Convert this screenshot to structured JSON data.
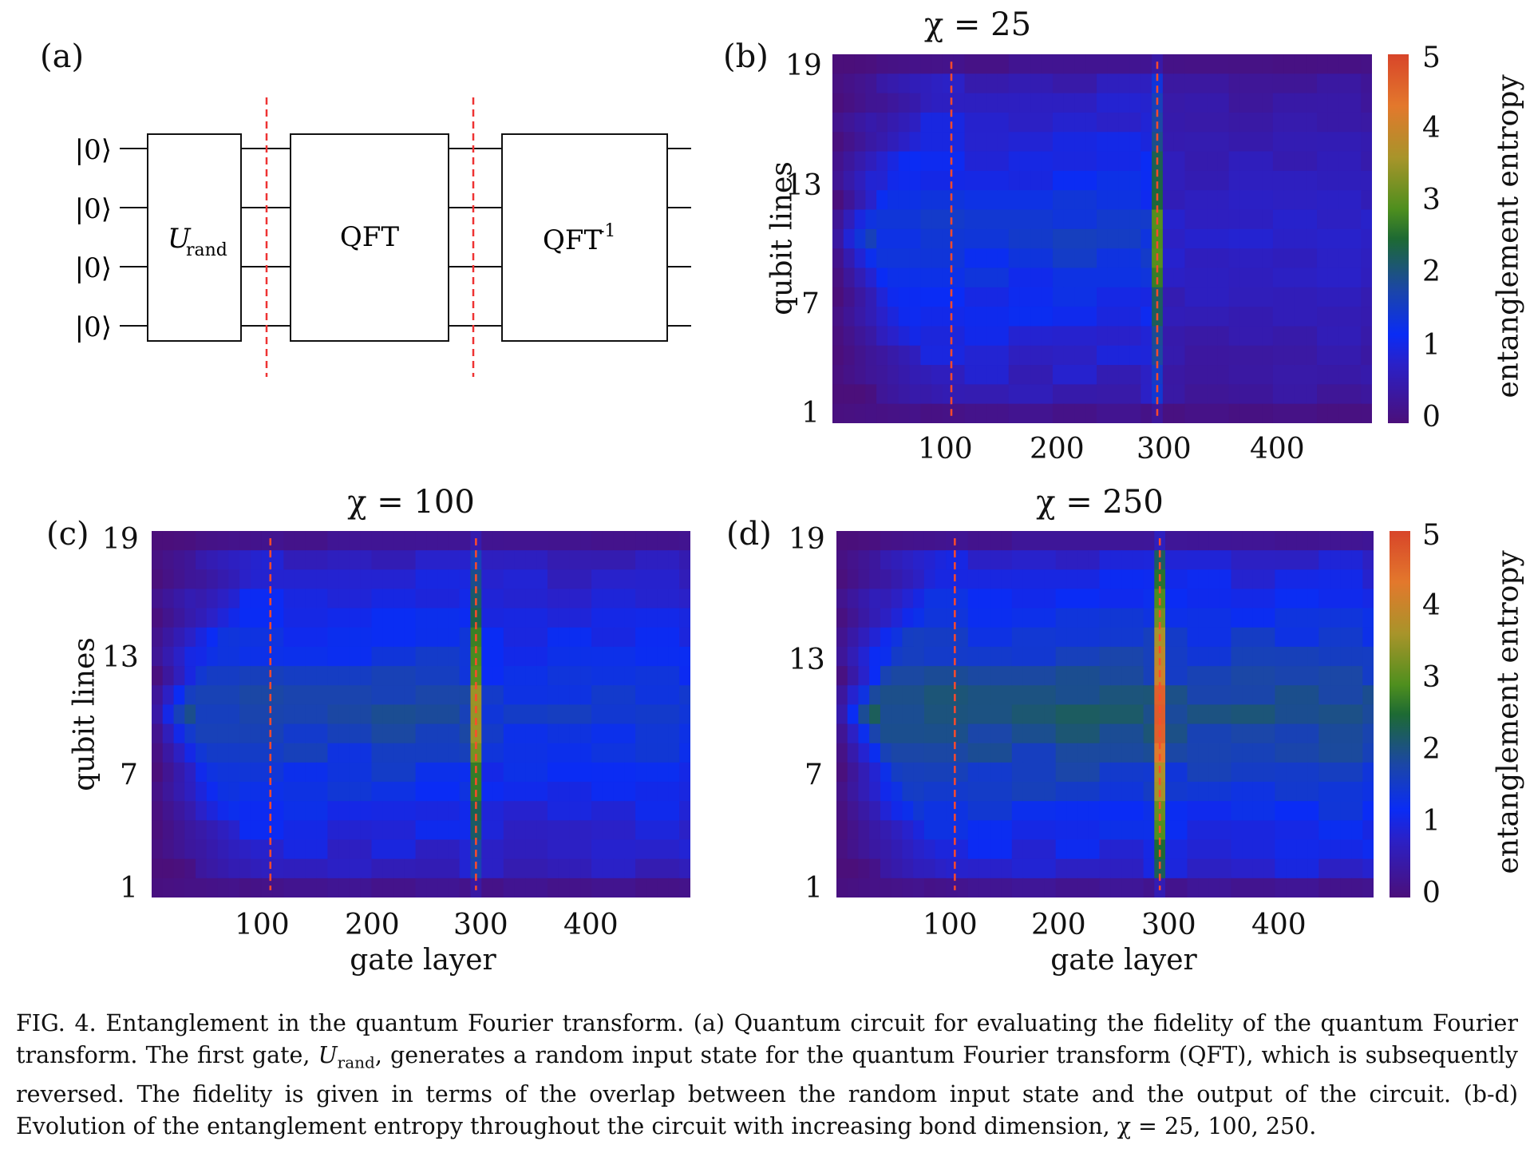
{
  "panels": {
    "a": {
      "label": "(a)",
      "kets": [
        "|0⟩",
        "|0⟩",
        "|0⟩",
        "|0⟩"
      ],
      "gates": {
        "urand_main": "U",
        "urand_sub": "rand",
        "qft": "QFT",
        "qft_inv_main": "QFT",
        "qft_inv_sup": "-1"
      }
    },
    "b": {
      "label": "(b)",
      "title": "χ = 25"
    },
    "c": {
      "label": "(c)",
      "title": "χ = 100"
    },
    "d": {
      "label": "(d)",
      "title": "χ = 250"
    }
  },
  "axes": {
    "xlabel": "gate layer",
    "ylabel": "qubit lines",
    "xticks": [
      "100",
      "200",
      "300",
      "400"
    ],
    "yticks": [
      "19",
      "13",
      "7",
      "1"
    ],
    "colorbar_label": "entanglement entropy",
    "colorbar_ticks": [
      "5",
      "4",
      "3",
      "2",
      "1",
      "0"
    ]
  },
  "chart_data": [
    {
      "type": "heatmap",
      "panel": "b",
      "title": "χ = 25",
      "xlabel": "",
      "ylabel": "qubit lines",
      "xlim": [
        0,
        490
      ],
      "ylim": [
        1,
        19
      ],
      "x_ticks": [
        100,
        200,
        300,
        400
      ],
      "y_ticks": [
        1,
        7,
        13,
        19
      ],
      "colorbar": {
        "label": "entanglement entropy",
        "range": [
          0,
          5
        ]
      },
      "dashed_lines_x": [
        108,
        295
      ],
      "peak_entropy": 3.0,
      "plateau_entropy": 1.5
    },
    {
      "type": "heatmap",
      "panel": "c",
      "title": "χ = 100",
      "xlabel": "gate layer",
      "ylabel": "qubit lines",
      "xlim": [
        0,
        490
      ],
      "ylim": [
        1,
        19
      ],
      "x_ticks": [
        100,
        200,
        300,
        400
      ],
      "y_ticks": [
        1,
        7,
        13,
        19
      ],
      "dashed_lines_x": [
        108,
        295
      ],
      "peak_entropy": 3.6,
      "plateau_entropy": 1.8
    },
    {
      "type": "heatmap",
      "panel": "d",
      "title": "χ = 250",
      "xlabel": "gate layer",
      "ylabel": "",
      "xlim": [
        0,
        490
      ],
      "ylim": [
        1,
        19
      ],
      "x_ticks": [
        100,
        200,
        300,
        400
      ],
      "y_ticks": [
        1,
        7,
        13,
        19
      ],
      "colorbar": {
        "label": "entanglement entropy",
        "range": [
          0,
          5
        ]
      },
      "dashed_lines_x": [
        108,
        295
      ],
      "peak_entropy": 4.8,
      "plateau_entropy": 2.1
    }
  ],
  "caption": {
    "part1": "FIG. 4. Entanglement in the quantum Fourier transform. (a) Quantum circuit for evaluating the fidelity of the quantum Fourier transform. The first gate, ",
    "urand_main": "U",
    "urand_sub": "rand",
    "part2": ", generates a random input state for the quantum Fourier transform (QFT), which is subsequently reversed. The fidelity is given in terms of the overlap between the random input state and the output of the circuit. (b-d) Evolution of the entanglement entropy throughout the circuit with increasing bond dimension, ",
    "chi_part": "χ = 25, 100, 250."
  }
}
